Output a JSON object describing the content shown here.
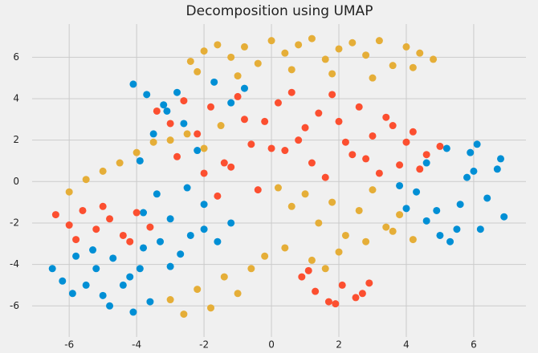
{
  "chart_data": {
    "type": "scatter",
    "title": "Decomposition using UMAP",
    "xlim": [
      -7.1,
      7.55
    ],
    "ylim": [
      -7.5,
      7.6
    ],
    "xticks": [
      -6,
      -4,
      -2,
      0,
      2,
      4,
      6
    ],
    "yticks": [
      -6,
      -4,
      -2,
      0,
      2,
      4,
      6
    ],
    "grid": true,
    "series": [
      {
        "color": "#008fd5",
        "x": [
          -6.5,
          -6.2,
          -5.8,
          -5.5,
          -5.2,
          -5.0,
          -4.7,
          -4.4,
          -4.1,
          -3.9,
          -3.6,
          -5.9,
          -5.3,
          -4.8,
          -4.2,
          -3.8,
          -3.3,
          -3.0,
          -2.7,
          -2.4,
          -2.0,
          -1.6,
          -1.2,
          -3.8,
          -3.4,
          -3.0,
          -2.5,
          -2.0,
          -3.9,
          -3.5,
          -3.1,
          -2.6,
          -2.2,
          -1.7,
          -1.2,
          -0.8,
          -4.1,
          -3.7,
          -3.2,
          -2.8,
          4.3,
          4.6,
          4.9,
          5.2,
          5.5,
          5.8,
          6.1,
          6.4,
          6.7,
          6.9,
          5.0,
          5.6,
          6.2,
          6.8,
          5.9,
          5.3,
          4.6,
          6.0,
          3.8,
          4.0
        ],
        "y": [
          -4.2,
          -4.8,
          -3.6,
          -5.0,
          -4.2,
          -5.5,
          -3.7,
          -5.0,
          -6.3,
          -4.2,
          -5.8,
          -5.4,
          -3.3,
          -6.0,
          -4.6,
          -3.2,
          -2.9,
          -4.1,
          -3.5,
          -2.6,
          -2.3,
          -2.9,
          -2.0,
          -1.5,
          -0.6,
          -1.8,
          -0.3,
          -1.1,
          1.0,
          2.3,
          3.4,
          2.8,
          1.5,
          4.8,
          3.8,
          4.5,
          4.7,
          4.2,
          3.7,
          4.3,
          -0.5,
          0.9,
          -1.4,
          1.6,
          -2.3,
          0.2,
          1.8,
          -0.8,
          0.6,
          -1.7,
          -2.6,
          -1.1,
          -2.3,
          1.1,
          1.4,
          -2.9,
          -1.9,
          0.5,
          -0.2,
          -1.3
        ]
      },
      {
        "color": "#fc4f30",
        "x": [
          -6.4,
          -6.0,
          -5.6,
          -5.2,
          -4.8,
          -4.4,
          -4.0,
          -3.6,
          -5.8,
          -5.0,
          -4.2,
          -3.4,
          -3.0,
          -2.6,
          -2.2,
          -1.8,
          -1.4,
          -1.0,
          -0.6,
          -0.2,
          0.2,
          0.6,
          1.0,
          1.4,
          1.8,
          2.2,
          2.6,
          3.0,
          3.4,
          3.8,
          4.2,
          4.6,
          5.0,
          -2.8,
          -2.0,
          -1.2,
          -0.4,
          0.4,
          1.2,
          2.0,
          2.8,
          3.6,
          4.4,
          -1.6,
          -0.8,
          0.0,
          0.8,
          1.6,
          2.4,
          3.2,
          4.0,
          0.9,
          1.3,
          1.7,
          2.1,
          2.5,
          2.9,
          1.1,
          1.9,
          2.7
        ],
        "y": [
          -1.6,
          -2.1,
          -1.4,
          -2.3,
          -1.8,
          -2.6,
          -1.5,
          -2.2,
          -2.8,
          -1.2,
          -2.9,
          3.4,
          2.8,
          3.9,
          2.3,
          3.6,
          0.9,
          4.1,
          1.8,
          2.9,
          3.8,
          4.3,
          2.6,
          3.3,
          4.2,
          1.9,
          3.6,
          2.2,
          3.1,
          0.8,
          2.4,
          1.3,
          1.7,
          1.2,
          0.4,
          0.7,
          -0.4,
          1.5,
          0.9,
          2.9,
          1.1,
          2.7,
          0.6,
          -0.7,
          3.0,
          1.6,
          2.0,
          0.2,
          1.3,
          0.4,
          1.9,
          -4.6,
          -5.3,
          -5.8,
          -5.0,
          -5.6,
          -4.9,
          -4.3,
          -5.9,
          -5.4
        ]
      },
      {
        "color": "#e5ae38",
        "x": [
          -2.4,
          -2.0,
          -1.6,
          -1.2,
          -0.8,
          -0.4,
          0.0,
          0.4,
          0.8,
          1.2,
          1.6,
          2.0,
          2.4,
          2.8,
          3.2,
          3.6,
          4.0,
          4.4,
          4.8,
          -2.2,
          -1.0,
          0.6,
          1.8,
          3.0,
          4.2,
          -6.0,
          -5.5,
          -5.0,
          -4.5,
          -4.0,
          -3.5,
          -3.0,
          -2.5,
          -2.0,
          -1.5,
          0.2,
          0.6,
          1.0,
          1.4,
          1.8,
          2.2,
          2.6,
          3.0,
          3.4,
          3.8,
          4.2,
          0.4,
          1.2,
          2.0,
          2.8,
          3.6,
          1.6,
          -3.0,
          -2.6,
          -2.2,
          -1.8,
          -1.4,
          -1.0,
          -0.6,
          -0.2
        ],
        "y": [
          5.8,
          6.3,
          6.6,
          6.0,
          6.5,
          5.7,
          6.8,
          6.2,
          6.6,
          6.9,
          5.9,
          6.4,
          6.7,
          6.1,
          6.8,
          5.6,
          6.5,
          6.2,
          5.9,
          5.3,
          5.1,
          5.4,
          5.2,
          5.0,
          5.5,
          -0.5,
          0.1,
          0.5,
          0.9,
          1.4,
          1.9,
          2.0,
          2.3,
          1.6,
          2.7,
          -0.3,
          -1.2,
          -0.6,
          -2.0,
          -1.0,
          -2.6,
          -1.4,
          -0.4,
          -2.2,
          -1.6,
          -2.8,
          -3.2,
          -3.8,
          -3.4,
          -2.9,
          -2.4,
          -4.2,
          -5.7,
          -6.4,
          -5.2,
          -6.1,
          -4.6,
          -5.4,
          -4.2,
          -3.6
        ]
      }
    ]
  }
}
